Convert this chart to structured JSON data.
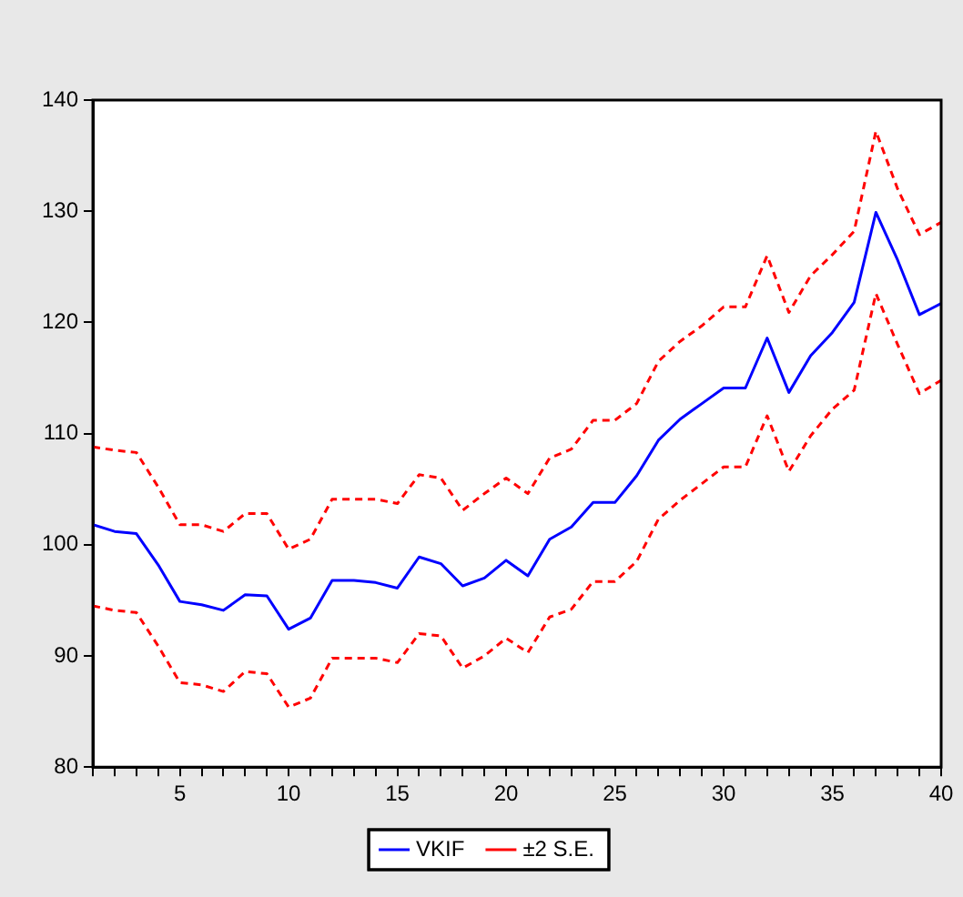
{
  "chart_data": {
    "type": "line",
    "x": [
      1,
      2,
      3,
      4,
      5,
      6,
      7,
      8,
      9,
      10,
      11,
      12,
      13,
      14,
      15,
      16,
      17,
      18,
      19,
      20,
      21,
      22,
      23,
      24,
      25,
      26,
      27,
      28,
      29,
      30,
      31,
      32,
      33,
      34,
      35,
      36,
      37,
      38,
      39,
      40
    ],
    "series": [
      {
        "name": "VKIF",
        "color": "#0000ff",
        "line_style": "solid",
        "values": [
          101.8,
          101.2,
          101.0,
          98.2,
          94.9,
          94.6,
          94.1,
          95.5,
          95.4,
          92.4,
          93.4,
          96.8,
          96.8,
          96.6,
          96.1,
          98.9,
          98.3,
          96.3,
          97.0,
          98.6,
          97.2,
          100.5,
          101.6,
          103.8,
          103.8,
          106.2,
          109.4,
          111.3,
          112.7,
          114.1,
          114.1,
          118.6,
          113.7,
          117.0,
          119.1,
          121.8,
          129.9,
          125.6,
          120.7,
          121.7
        ]
      },
      {
        "name": "±2 S.E.",
        "color": "#ff0000",
        "line_style": "dashed",
        "values": [
          108.8,
          108.5,
          108.3,
          105.2,
          101.8,
          101.8,
          101.2,
          102.8,
          102.8,
          99.6,
          100.5,
          104.1,
          104.1,
          104.1,
          103.7,
          106.3,
          106.0,
          103.1,
          104.6,
          106.0,
          104.6,
          107.8,
          108.6,
          111.2,
          111.2,
          112.7,
          116.5,
          118.3,
          119.7,
          121.4,
          121.4,
          126.0,
          120.9,
          124.2,
          126.1,
          128.2,
          137.2,
          132.0,
          127.9,
          129.0
        ]
      },
      {
        "color": "#ff0000",
        "line_style": "dashed",
        "values": [
          94.5,
          94.1,
          93.9,
          90.9,
          87.6,
          87.4,
          86.8,
          88.6,
          88.4,
          85.4,
          86.2,
          89.8,
          89.8,
          89.8,
          89.4,
          92.0,
          91.8,
          88.9,
          90.0,
          91.6,
          90.3,
          93.5,
          94.2,
          96.7,
          96.7,
          98.5,
          102.3,
          104.0,
          105.5,
          107.0,
          107.0,
          111.6,
          106.6,
          109.8,
          112.2,
          113.9,
          122.6,
          118.0,
          113.6,
          114.8
        ]
      }
    ],
    "xlim": [
      1,
      40
    ],
    "xticks": [
      {
        "value": 1,
        "label": null
      },
      {
        "value": 2,
        "label": null
      },
      {
        "value": 3,
        "label": null
      },
      {
        "value": 4,
        "label": null
      },
      5,
      {
        "value": 6,
        "label": null
      },
      {
        "value": 7,
        "label": null
      },
      {
        "value": 8,
        "label": null
      },
      {
        "value": 9,
        "label": null
      },
      10,
      {
        "value": 11,
        "label": null
      },
      {
        "value": 12,
        "label": null
      },
      {
        "value": 13,
        "label": null
      },
      {
        "value": 14,
        "label": null
      },
      15,
      {
        "value": 16,
        "label": null
      },
      {
        "value": 17,
        "label": null
      },
      {
        "value": 18,
        "label": null
      },
      {
        "value": 19,
        "label": null
      },
      20,
      {
        "value": 21,
        "label": null
      },
      {
        "value": 22,
        "label": null
      },
      {
        "value": 23,
        "label": null
      },
      {
        "value": 24,
        "label": null
      },
      25,
      {
        "value": 26,
        "label": null
      },
      {
        "value": 27,
        "label": null
      },
      {
        "value": 28,
        "label": null
      },
      {
        "value": 29,
        "label": null
      },
      30,
      {
        "value": 31,
        "label": null
      },
      {
        "value": 32,
        "label": null
      },
      {
        "value": 33,
        "label": null
      },
      {
        "value": 34,
        "label": null
      },
      35,
      {
        "value": 36,
        "label": null
      },
      {
        "value": 37,
        "label": null
      },
      {
        "value": 38,
        "label": null
      },
      {
        "value": 39,
        "label": null
      },
      40
    ],
    "ylim": [
      80,
      140
    ],
    "yticks": [
      80,
      90,
      100,
      110,
      120,
      130,
      140
    ],
    "grid": false,
    "legend": "bottom",
    "marker": "none"
  }
}
